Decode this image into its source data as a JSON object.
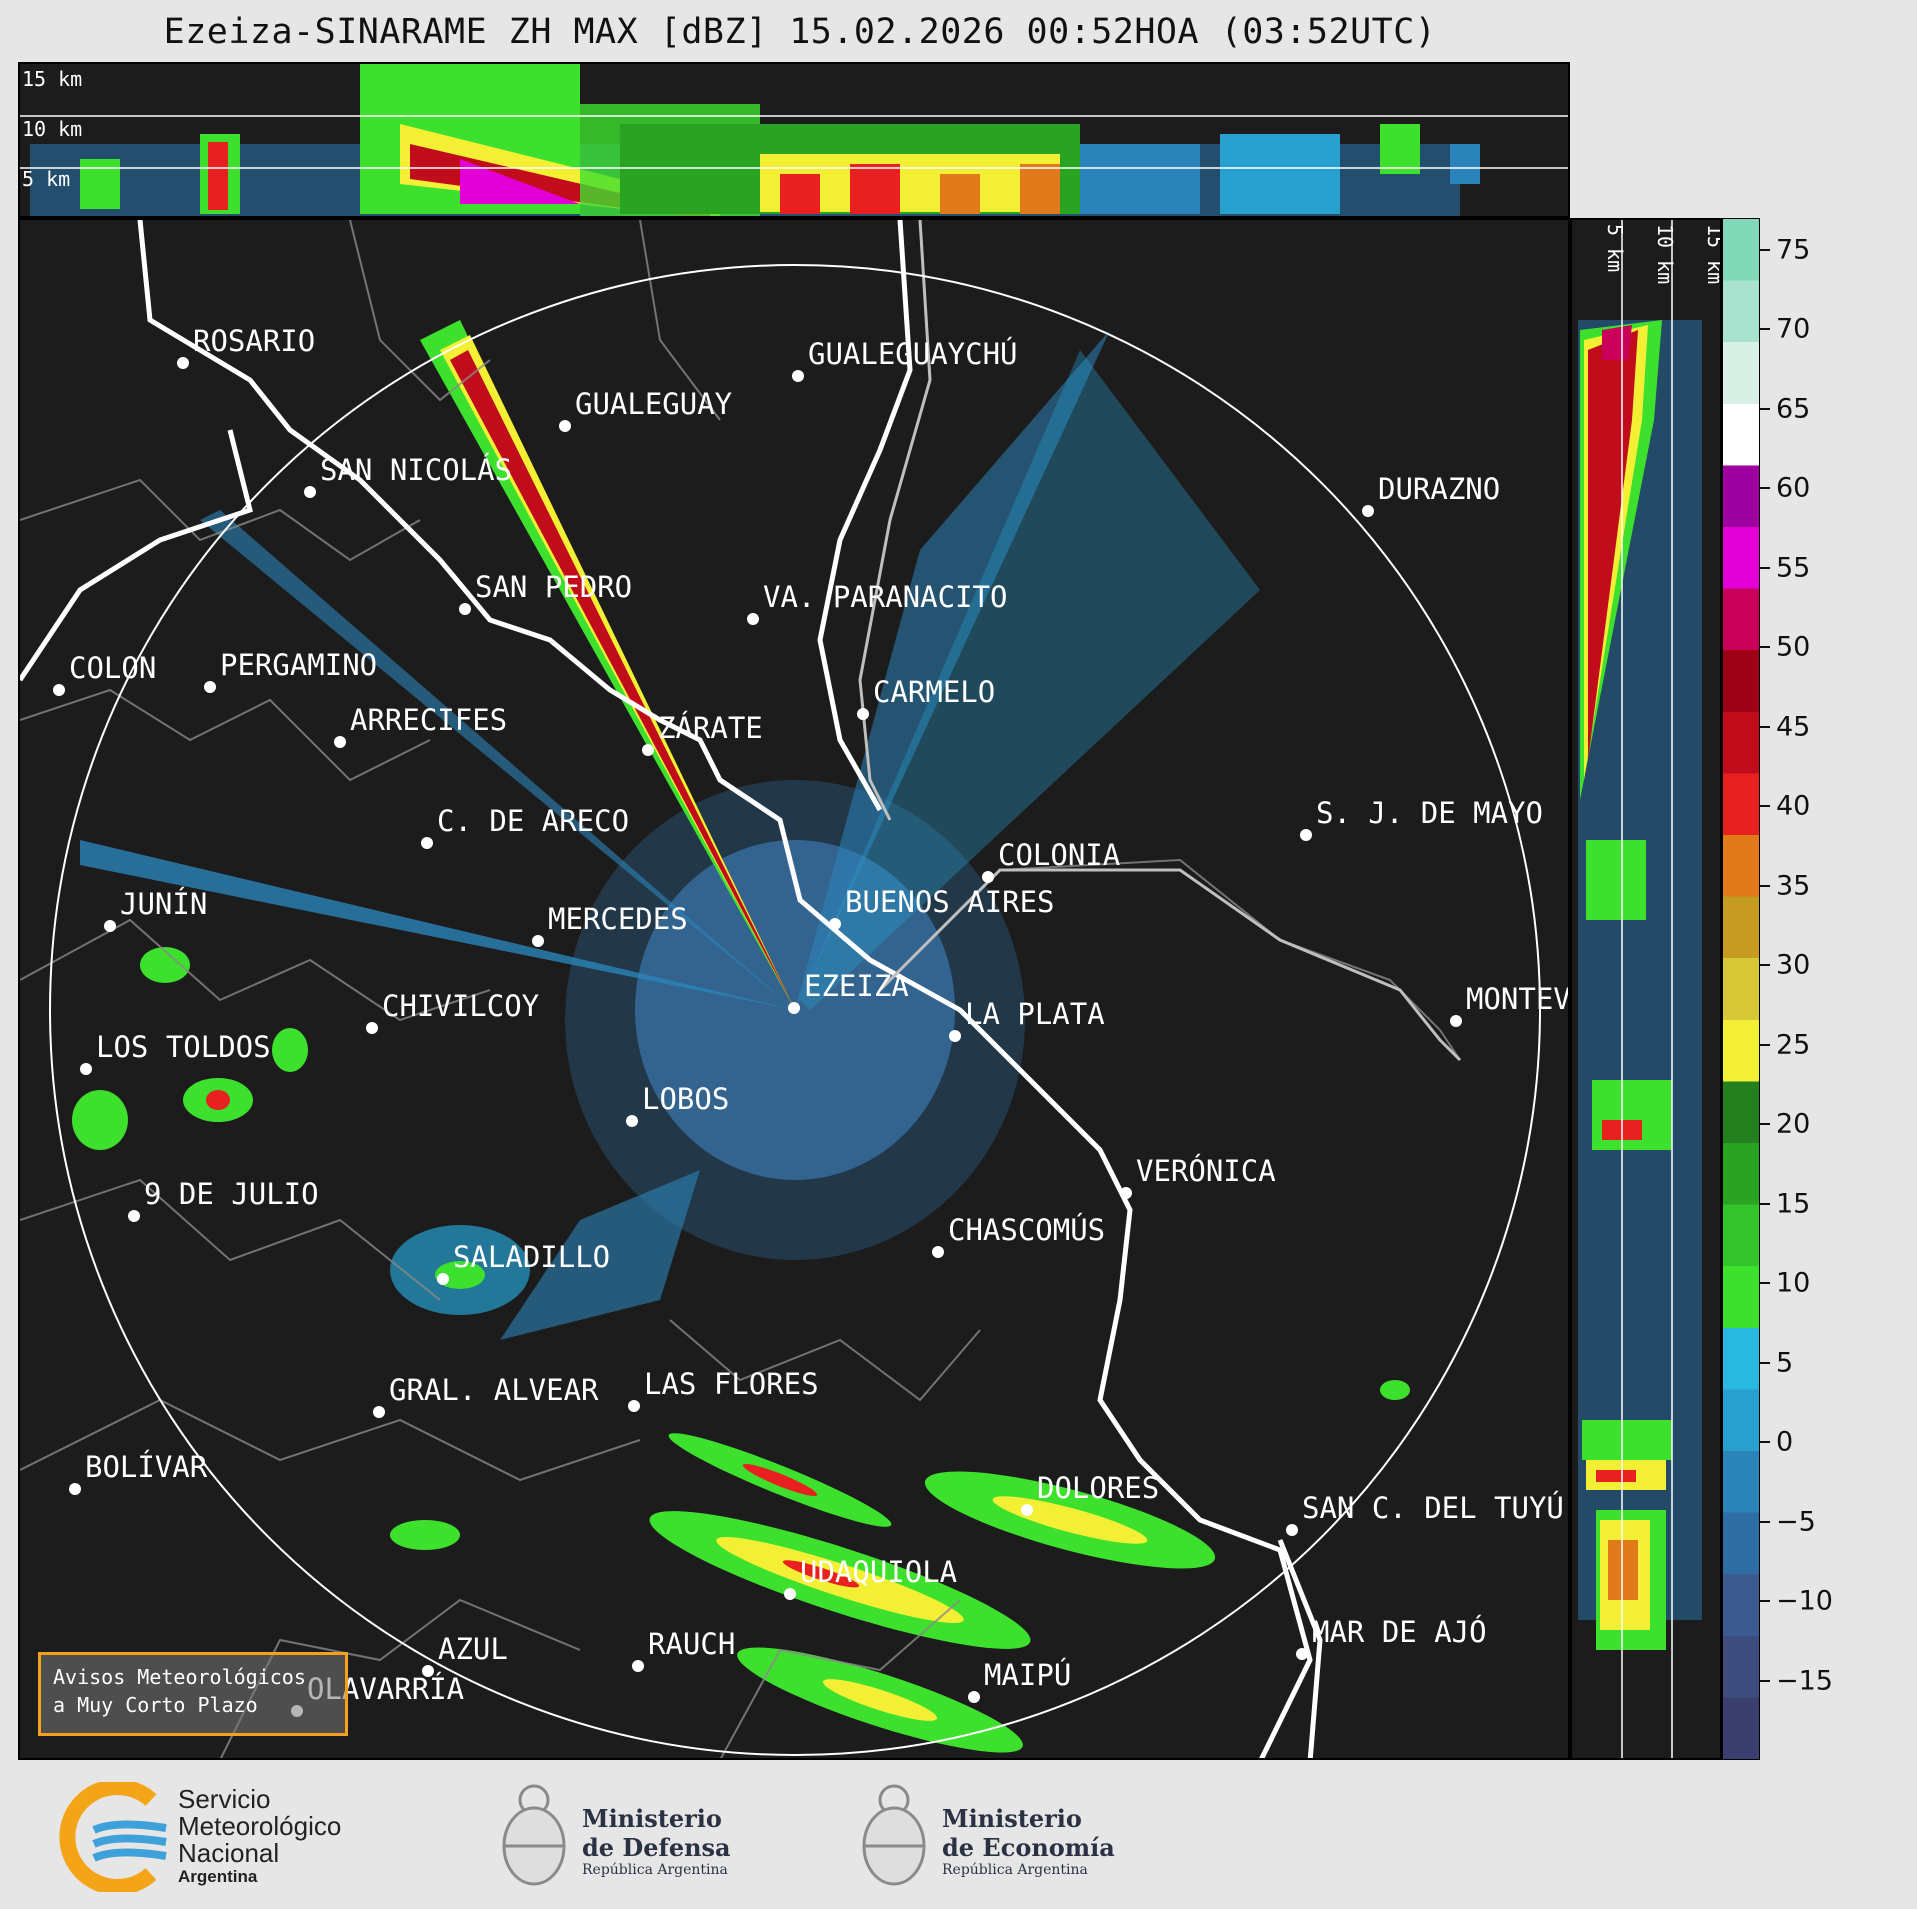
{
  "title": "Ezeiza-SINARAME ZH MAX [dBZ] 15.02.2026 00:52HOA (03:52UTC)",
  "top_panel": {
    "height_labels": [
      "15 km",
      "10 km",
      "5 km"
    ]
  },
  "side_panel": {
    "height_labels": [
      "5 km",
      "10 km",
      "15 km"
    ]
  },
  "colorbar": {
    "unit": "dBZ",
    "ticks": [
      "75",
      "70",
      "65",
      "60",
      "55",
      "50",
      "45",
      "40",
      "35",
      "30",
      "25",
      "20",
      "15",
      "10",
      "5",
      "0",
      "−5",
      "−10",
      "−15"
    ],
    "tick_values": [
      75,
      70,
      65,
      60,
      55,
      50,
      45,
      40,
      35,
      30,
      25,
      20,
      15,
      10,
      5,
      0,
      -5,
      -10,
      -15
    ],
    "range": [
      -20,
      77
    ],
    "colors": [
      "#3b3f6e",
      "#3e4c7e",
      "#3c5a8f",
      "#2f6ea5",
      "#2b84b9",
      "#27a0d0",
      "#28b8e0",
      "#3ee02e",
      "#32c42a",
      "#2aa322",
      "#247f1e",
      "#f3ef35",
      "#d7c838",
      "#c59b22",
      "#e07a1a",
      "#e8201f",
      "#c10d1b",
      "#9d0014",
      "#c8005a",
      "#e300d6",
      "#9d009e",
      "#ffffff",
      "#d9f0e6",
      "#a9e3cf",
      "#80d9b8"
    ]
  },
  "cities": [
    {
      "name": "ROSARIO"
    },
    {
      "name": "GUALEGUAYCHÚ"
    },
    {
      "name": "GUALEGUAY"
    },
    {
      "name": "SAN NICOLÁS"
    },
    {
      "name": "DURAZNO"
    },
    {
      "name": "SAN PEDRO"
    },
    {
      "name": "VA. PARANACITO"
    },
    {
      "name": "COLON"
    },
    {
      "name": "PERGAMINO"
    },
    {
      "name": "CARMELO"
    },
    {
      "name": "ARRECIFES"
    },
    {
      "name": "ZÁRATE"
    },
    {
      "name": "S. J. DE MAYO"
    },
    {
      "name": "C. DE ARECO"
    },
    {
      "name": "COLONIA"
    },
    {
      "name": "JUNÍN"
    },
    {
      "name": "BUENOS AIRES"
    },
    {
      "name": "MERCEDES"
    },
    {
      "name": "EZEIZA"
    },
    {
      "name": "MONTEVIDEO"
    },
    {
      "name": "CHIVILCOY"
    },
    {
      "name": "LA PLATA"
    },
    {
      "name": "LOS TOLDOS"
    },
    {
      "name": "LOBOS"
    },
    {
      "name": "VERÓNICA"
    },
    {
      "name": "9 DE JULIO"
    },
    {
      "name": "CHASCOMÚS"
    },
    {
      "name": "SALADILLO"
    },
    {
      "name": "GRAL. ALVEAR"
    },
    {
      "name": "LAS FLORES"
    },
    {
      "name": "BOLÍVAR"
    },
    {
      "name": "DOLORES"
    },
    {
      "name": "SAN C. DEL TUYÚ"
    },
    {
      "name": "UDAQUIOLA"
    },
    {
      "name": "MAR DE AJÓ"
    },
    {
      "name": "AZUL"
    },
    {
      "name": "RAUCH"
    },
    {
      "name": "OLAVARRÍA"
    },
    {
      "name": "MAIPÚ"
    }
  ],
  "alert_button": {
    "line1": "Avisos Meteorológicos",
    "line2": "a Muy Corto Plazo"
  },
  "logos": {
    "smn": {
      "line1": "Servicio",
      "line2": "Meteorológico",
      "line3": "Nacional",
      "line4": "Argentina"
    },
    "defensa": {
      "line1": "Ministerio",
      "line2": "de Defensa",
      "line3": "República Argentina"
    },
    "economia": {
      "line1": "Ministerio",
      "line2": "de Economía",
      "line3": "República Argentina"
    }
  }
}
